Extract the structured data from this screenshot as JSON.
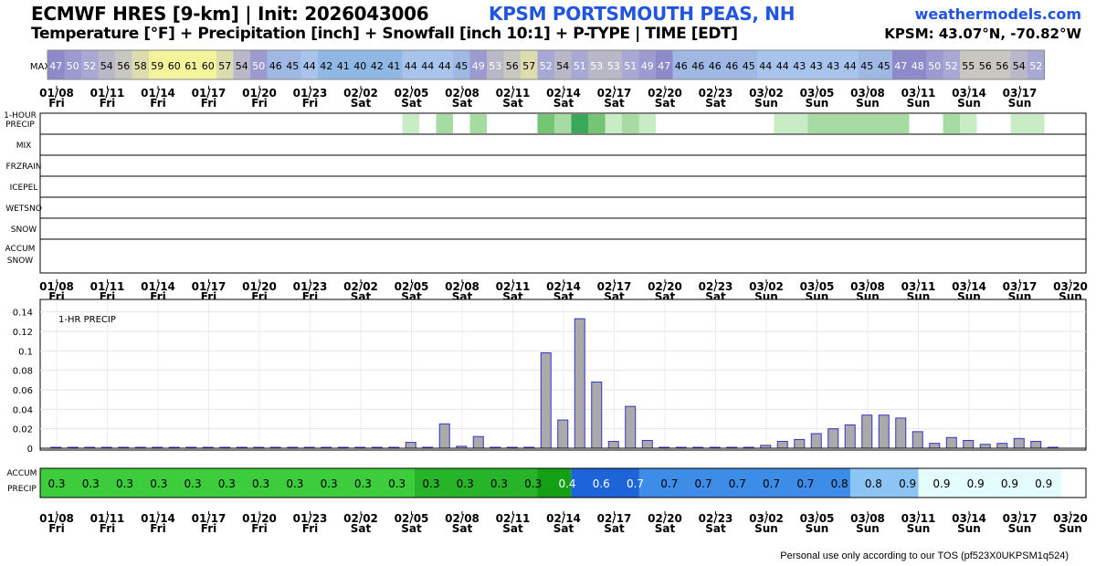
{
  "header": {
    "title": "ECMWF HRES [9-km] | Init: 2026043006",
    "station": "KPSM PORTSMOUTH PEAS, NH",
    "subtitle": "Temperature [°F] + Precipitation [inch] + Snowfall [inch 10:1] + P-TYPE | TIME [EDT]",
    "brand": "weathermodels.com",
    "coords": "KPSM: 43.07°N, -70.82°W"
  },
  "footer": {
    "text": "Personal use only according to our TOS (pf523X0UKPSM1q524)"
  },
  "time_axis": {
    "dates": [
      "01/08",
      "01/11",
      "01/14",
      "01/17",
      "01/20",
      "01/23",
      "02/02",
      "02/05",
      "02/08",
      "02/11",
      "02/14",
      "02/17",
      "02/20",
      "02/23",
      "03/02",
      "03/05",
      "03/08",
      "03/11",
      "03/14",
      "03/17",
      "03/20"
    ],
    "days": [
      "Fri",
      "Fri",
      "Fri",
      "Fri",
      "Fri",
      "Fri",
      "Sat",
      "Sat",
      "Sat",
      "Sat",
      "Sat",
      "Sat",
      "Sat",
      "Sat",
      "Sun",
      "Sun",
      "Sun",
      "Sun",
      "Sun",
      "Sun",
      "Sun"
    ],
    "top_strip_count": 20
  },
  "max_temp": {
    "label": "MAX",
    "values": [
      47,
      50,
      52,
      54,
      56,
      58,
      59,
      60,
      61,
      60,
      57,
      54,
      50,
      46,
      45,
      44,
      42,
      41,
      40,
      42,
      41,
      44,
      44,
      44,
      45,
      49,
      53,
      56,
      57,
      52,
      54,
      51,
      53,
      53,
      51,
      49,
      47,
      46,
      46,
      46,
      46,
      45,
      44,
      44,
      43,
      43,
      43,
      44,
      45,
      45,
      47,
      48,
      50,
      52,
      55,
      56,
      56,
      54,
      52
    ]
  },
  "ptype_rows": {
    "precip_label_line1": "1-HOUR",
    "precip_label_line2": "PRECIP",
    "labels": [
      "MIX",
      "FRZRAIN",
      "ICEPEL",
      "WETSNO",
      "SNOW"
    ],
    "accum_snow_line1": "ACCUM",
    "accum_snow_line2": "SNOW",
    "precip_cells": [
      {
        "i": 21,
        "level": 1
      },
      {
        "i": 23,
        "level": 2
      },
      {
        "i": 25,
        "level": 2
      },
      {
        "i": 29,
        "level": 3
      },
      {
        "i": 30,
        "level": 2
      },
      {
        "i": 31,
        "level": 4
      },
      {
        "i": 32,
        "level": 3
      },
      {
        "i": 33,
        "level": 1
      },
      {
        "i": 34,
        "level": 2
      },
      {
        "i": 35,
        "level": 1
      },
      {
        "i": 43,
        "level": 1
      },
      {
        "i": 44,
        "level": 1
      },
      {
        "i": 45,
        "level": 2
      },
      {
        "i": 46,
        "level": 2
      },
      {
        "i": 47,
        "level": 2
      },
      {
        "i": 48,
        "level": 2
      },
      {
        "i": 49,
        "level": 2
      },
      {
        "i": 50,
        "level": 2
      },
      {
        "i": 53,
        "level": 2
      },
      {
        "i": 54,
        "level": 1
      },
      {
        "i": 57,
        "level": 1
      },
      {
        "i": 58,
        "level": 1
      }
    ],
    "level_colors": [
      "#ffffff",
      "#c8ecc4",
      "#a6dca2",
      "#74c674",
      "#3aa85a"
    ]
  },
  "chart_data": {
    "type": "bar",
    "title": "1-HR PRECIP",
    "xlabel": "",
    "ylabel": "",
    "ylim": [
      0,
      0.15
    ],
    "yticks": [
      "0",
      "0.02",
      "0.04",
      "0.06",
      "0.08",
      "0.1",
      "0.12",
      "0.14"
    ],
    "grid": true,
    "bar_color": "#aaaaaa",
    "bar_edge": "#3333cc",
    "values": [
      0,
      0,
      0,
      0,
      0,
      0,
      0,
      0,
      0,
      0,
      0,
      0,
      0,
      0,
      0,
      0,
      0,
      0,
      0,
      0,
      0,
      0.006,
      0.001,
      0.025,
      0.002,
      0.012,
      0.001,
      0,
      0.001,
      0.098,
      0.029,
      0.133,
      0.068,
      0.007,
      0.043,
      0.008,
      0,
      0,
      0,
      0,
      0,
      0,
      0.003,
      0.007,
      0.009,
      0.015,
      0.02,
      0.024,
      0.034,
      0.034,
      0.031,
      0.017,
      0.005,
      0.011,
      0.008,
      0.004,
      0.005,
      0.01,
      0.007,
      0
    ]
  },
  "accum_precip": {
    "label_line1": "ACCUM",
    "label_line2": "PRECIP",
    "segments": [
      {
        "start": 0,
        "end": 11,
        "value": "0.3",
        "color": "#3ccc3c",
        "text_color": "#000000"
      },
      {
        "start": 11,
        "end": 14.6,
        "value": "0.3",
        "color": "#28b428",
        "text_color": "#000000"
      },
      {
        "start": 14.6,
        "end": 15.6,
        "value": "0.4",
        "color": "#14a014",
        "text_color": "#ffffff"
      },
      {
        "start": 15.6,
        "end": 17.6,
        "value": "0.6",
        "color": "#1c64d8",
        "text_color": "#ffffff"
      },
      {
        "start": 17.6,
        "end": 23.8,
        "value": "0.7",
        "color": "#3c8ce8",
        "text_color": "#000000"
      },
      {
        "start": 23.8,
        "end": 25.8,
        "value": "0.8",
        "color": "#8cc4f4",
        "text_color": "#000000"
      },
      {
        "start": 25.8,
        "end": 30,
        "value": "0.9",
        "color": "#e4fcfc",
        "text_color": "#000000"
      }
    ],
    "cell_values": [
      "0.3",
      "0.3",
      "0.3",
      "0.3",
      "0.3",
      "0.3",
      "0.3",
      "0.3",
      "0.3",
      "0.3",
      "0.3",
      "0.3",
      "0.3",
      "0.3",
      "0.3",
      "0.4",
      "0.6",
      "0.7",
      "0.7",
      "0.7",
      "0.7",
      "0.7",
      "0.7",
      "0.8",
      "0.8",
      "0.9",
      "0.9",
      "0.9",
      "0.9",
      "0.9"
    ]
  },
  "colors": {
    "temp_scale": [
      "#7a76c0",
      "#9b98d4",
      "#b6b4e0",
      "#c8c8c8",
      "#d4d0b0",
      "#e4e4a4",
      "#f0f090",
      "#ffff99",
      "#b8c8e8",
      "#8fb4e0",
      "#6e9ed8",
      "#a89ad8"
    ]
  }
}
